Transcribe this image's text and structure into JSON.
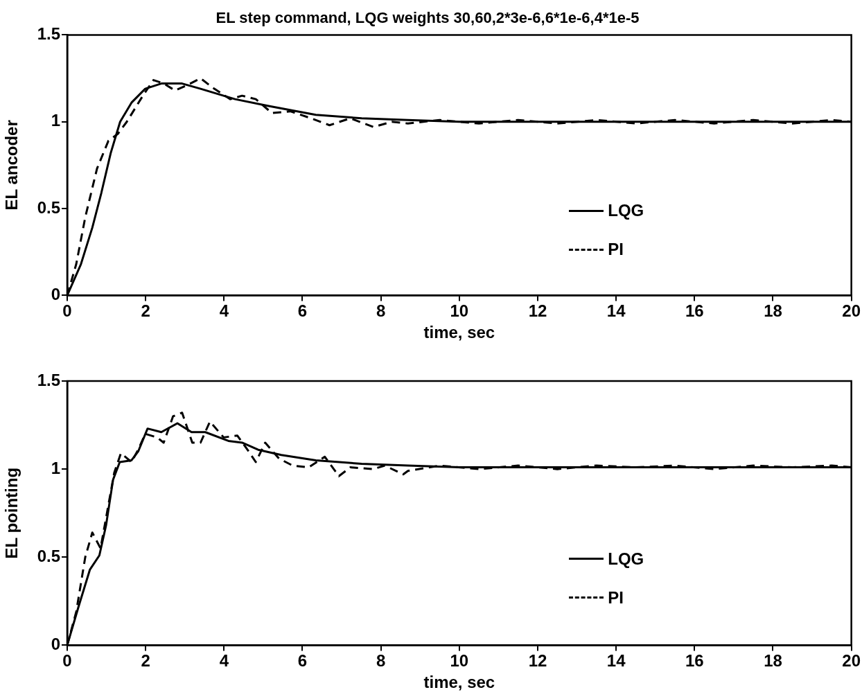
{
  "chart_data": [
    {
      "type": "line",
      "title": "EL step command, LQG weights 30,60,2*3e-6,6*1e-6,4*1e-5",
      "xlabel": "time, sec",
      "ylabel": "EL ancoder",
      "xlim": [
        0,
        20
      ],
      "xticks": [
        0,
        2,
        4,
        6,
        8,
        10,
        12,
        14,
        16,
        18,
        20
      ],
      "ylim": [
        0,
        1.5
      ],
      "yticks": [
        0,
        0.5,
        1,
        1.5
      ],
      "grid": false,
      "legend": "bottom right",
      "marker": "none",
      "series": [
        {
          "name": "LQG",
          "color": "#000000",
          "line_style": "solid",
          "x": [
            0,
            0.35,
            0.64,
            0.87,
            1.11,
            1.35,
            1.64,
            1.99,
            2.4,
            2.93,
            3.4,
            4.28,
            5.16,
            6.34,
            7.51,
            8.69,
            10,
            12,
            14,
            16,
            18,
            20
          ],
          "values": [
            0,
            0.18,
            0.39,
            0.59,
            0.82,
            1.0,
            1.11,
            1.19,
            1.22,
            1.22,
            1.19,
            1.13,
            1.09,
            1.04,
            1.02,
            1.01,
            1.0,
            1.0,
            1.0,
            1.0,
            1.0,
            1.0
          ]
        },
        {
          "name": "PI",
          "color": "#000000",
          "line_style": "dashed",
          "x": [
            0,
            0.23,
            0.46,
            0.76,
            1.05,
            1.29,
            1.52,
            1.93,
            2.2,
            2.46,
            2.75,
            3.05,
            3.4,
            3.75,
            4.16,
            4.46,
            4.81,
            5.22,
            5.69,
            6.22,
            6.69,
            7.22,
            7.81,
            8.28,
            8.69,
            9.5,
            10.5,
            11.5,
            12.5,
            13.5,
            14.5,
            15.5,
            16.5,
            17.5,
            18.5,
            19.5,
            20
          ],
          "values": [
            0,
            0.18,
            0.45,
            0.73,
            0.89,
            0.93,
            1.0,
            1.15,
            1.24,
            1.22,
            1.18,
            1.21,
            1.25,
            1.19,
            1.13,
            1.15,
            1.13,
            1.05,
            1.06,
            1.02,
            0.98,
            1.02,
            0.97,
            1.0,
            0.99,
            1.01,
            0.99,
            1.01,
            0.99,
            1.01,
            0.99,
            1.01,
            0.99,
            1.01,
            0.99,
            1.01,
            1.0
          ]
        }
      ]
    },
    {
      "type": "line",
      "xlabel": "time, sec",
      "ylabel": "EL pointing",
      "xlim": [
        0,
        20
      ],
      "xticks": [
        0,
        2,
        4,
        6,
        8,
        10,
        12,
        14,
        16,
        18,
        20
      ],
      "ylim": [
        0,
        1.5
      ],
      "yticks": [
        0,
        0.5,
        1,
        1.5
      ],
      "grid": false,
      "legend": "bottom right",
      "marker": "none",
      "series": [
        {
          "name": "LQG",
          "color": "#000000",
          "line_style": "solid",
          "x": [
            0,
            0.29,
            0.58,
            0.82,
            0.99,
            1.17,
            1.34,
            1.64,
            1.81,
            2.05,
            2.4,
            2.81,
            3.17,
            3.52,
            4.11,
            4.46,
            4.87,
            5.46,
            6.34,
            7.51,
            8.69,
            10,
            12,
            14,
            16,
            18,
            20
          ],
          "values": [
            0,
            0.22,
            0.43,
            0.51,
            0.68,
            0.94,
            1.04,
            1.05,
            1.1,
            1.23,
            1.21,
            1.26,
            1.21,
            1.21,
            1.16,
            1.15,
            1.11,
            1.08,
            1.05,
            1.03,
            1.02,
            1.01,
            1.01,
            1.01,
            1.01,
            1.01,
            1.01
          ]
        },
        {
          "name": "PI",
          "color": "#000000",
          "line_style": "dashed",
          "x": [
            0,
            0.23,
            0.46,
            0.64,
            0.85,
            1.2,
            1.37,
            1.64,
            1.81,
            1.99,
            2.29,
            2.46,
            2.7,
            2.93,
            3.19,
            3.4,
            3.64,
            3.99,
            4.34,
            4.63,
            4.81,
            5.05,
            5.4,
            5.75,
            6.16,
            6.57,
            6.93,
            7.22,
            7.81,
            8.1,
            8.57,
            8.69,
            9.5,
            10.5,
            11.5,
            12.5,
            13.5,
            14.5,
            15.5,
            16.5,
            17.5,
            18.5,
            19.5,
            20
          ],
          "values": [
            0,
            0.19,
            0.5,
            0.64,
            0.55,
            0.98,
            1.09,
            1.04,
            1.11,
            1.2,
            1.18,
            1.15,
            1.3,
            1.32,
            1.15,
            1.15,
            1.27,
            1.18,
            1.19,
            1.1,
            1.04,
            1.15,
            1.06,
            1.02,
            1.01,
            1.07,
            0.96,
            1.01,
            1.0,
            1.02,
            0.97,
            0.99,
            1.02,
            1.0,
            1.02,
            1.0,
            1.02,
            1.01,
            1.02,
            1.0,
            1.02,
            1.01,
            1.02,
            1.01
          ]
        }
      ]
    }
  ]
}
